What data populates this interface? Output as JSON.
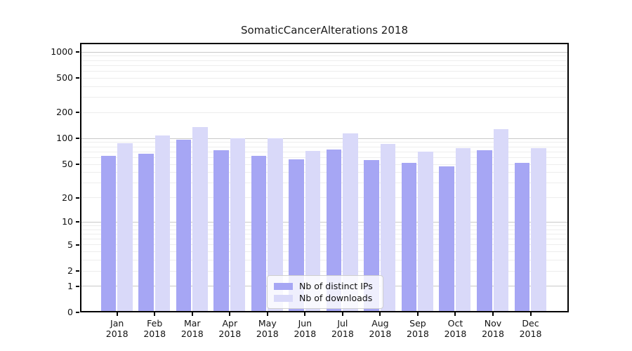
{
  "title": "SomaticCancerAlterations 2018",
  "colors": {
    "distinct_ips_bar": "#a6a6f4",
    "downloads_bar": "#d9d9f9",
    "grid_major": "#c9c9c9",
    "grid_minor": "#ededed",
    "axis": "#000000",
    "text": "#111111",
    "legend_border": "#cfcfcf"
  },
  "y_axis": {
    "tick_values": [
      1000,
      500,
      200,
      100,
      50,
      20,
      10,
      5,
      2,
      1,
      0
    ],
    "major_gridlines": [
      1,
      10,
      100,
      1000
    ],
    "minor_gridlines": [
      2,
      3,
      4,
      5,
      6,
      7,
      8,
      9,
      20,
      30,
      40,
      50,
      60,
      70,
      80,
      90,
      200,
      300,
      400,
      500,
      600,
      700,
      800,
      900
    ]
  },
  "legend": {
    "items": [
      {
        "label": "Nb of distinct IPs",
        "color": "#a6a6f4"
      },
      {
        "label": "Nb of downloads",
        "color": "#d9d9f9"
      }
    ]
  },
  "chart_data": {
    "type": "bar",
    "title": "SomaticCancerAlterations 2018",
    "categories": [
      "Jan 2018",
      "Feb 2018",
      "Mar 2018",
      "Apr 2018",
      "May 2018",
      "Jun 2018",
      "Jul 2018",
      "Aug 2018",
      "Sep 2018",
      "Oct 2018",
      "Nov 2018",
      "Dec 2018"
    ],
    "series": [
      {
        "name": "Nb of distinct IPs",
        "color": "#a6a6f4",
        "values": [
          63,
          66,
          97,
          73,
          63,
          57,
          74,
          56,
          52,
          47,
          73,
          52
        ]
      },
      {
        "name": "Nb of downloads",
        "color": "#d9d9f9",
        "values": [
          88,
          109,
          135,
          101,
          101,
          72,
          116,
          87,
          71,
          78,
          128,
          77
        ]
      }
    ],
    "xlabel": "",
    "ylabel": "",
    "y_scale": "log1p",
    "ylim": [
      0,
      1280
    ],
    "y_ticks": [
      0,
      1,
      2,
      5,
      10,
      20,
      50,
      100,
      200,
      500,
      1000
    ],
    "grid": "on",
    "legend_position": "inside-bottom-center"
  }
}
